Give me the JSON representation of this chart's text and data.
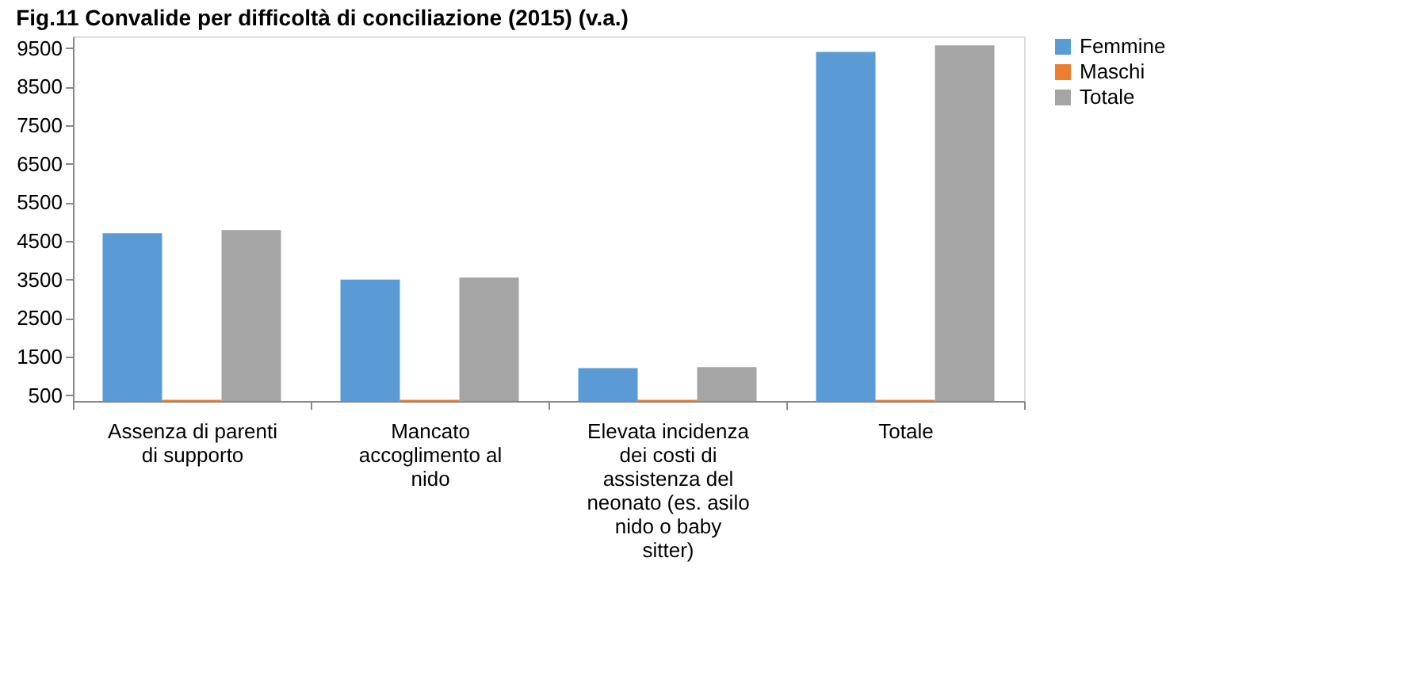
{
  "chart_data": {
    "type": "bar",
    "title": "Fig.11 Convalide per difficoltà di conciliazione (2015) (v.a.)",
    "categories": [
      "Assenza di parenti di supporto",
      "Mancato accoglimento al nido",
      "Elevata incidenza dei costi di assistenza del neonato (es. asilo nido o baby sitter)",
      "Totale"
    ],
    "series": [
      {
        "name": "Femmine",
        "color": "#5b9bd5",
        "values": [
          4700,
          3500,
          1200,
          9400
        ]
      },
      {
        "name": "Maschi",
        "color": "#ed7d31",
        "values": [
          380,
          380,
          380,
          380
        ]
      },
      {
        "name": "Totale",
        "color": "#a5a5a5",
        "values": [
          4780,
          3550,
          1230,
          9570
        ]
      }
    ],
    "ylim": [
      350,
      9800
    ],
    "yticks": [
      500,
      1500,
      2500,
      3500,
      4500,
      5500,
      6500,
      7500,
      8500,
      9500
    ],
    "grid": false,
    "legend": "right"
  }
}
